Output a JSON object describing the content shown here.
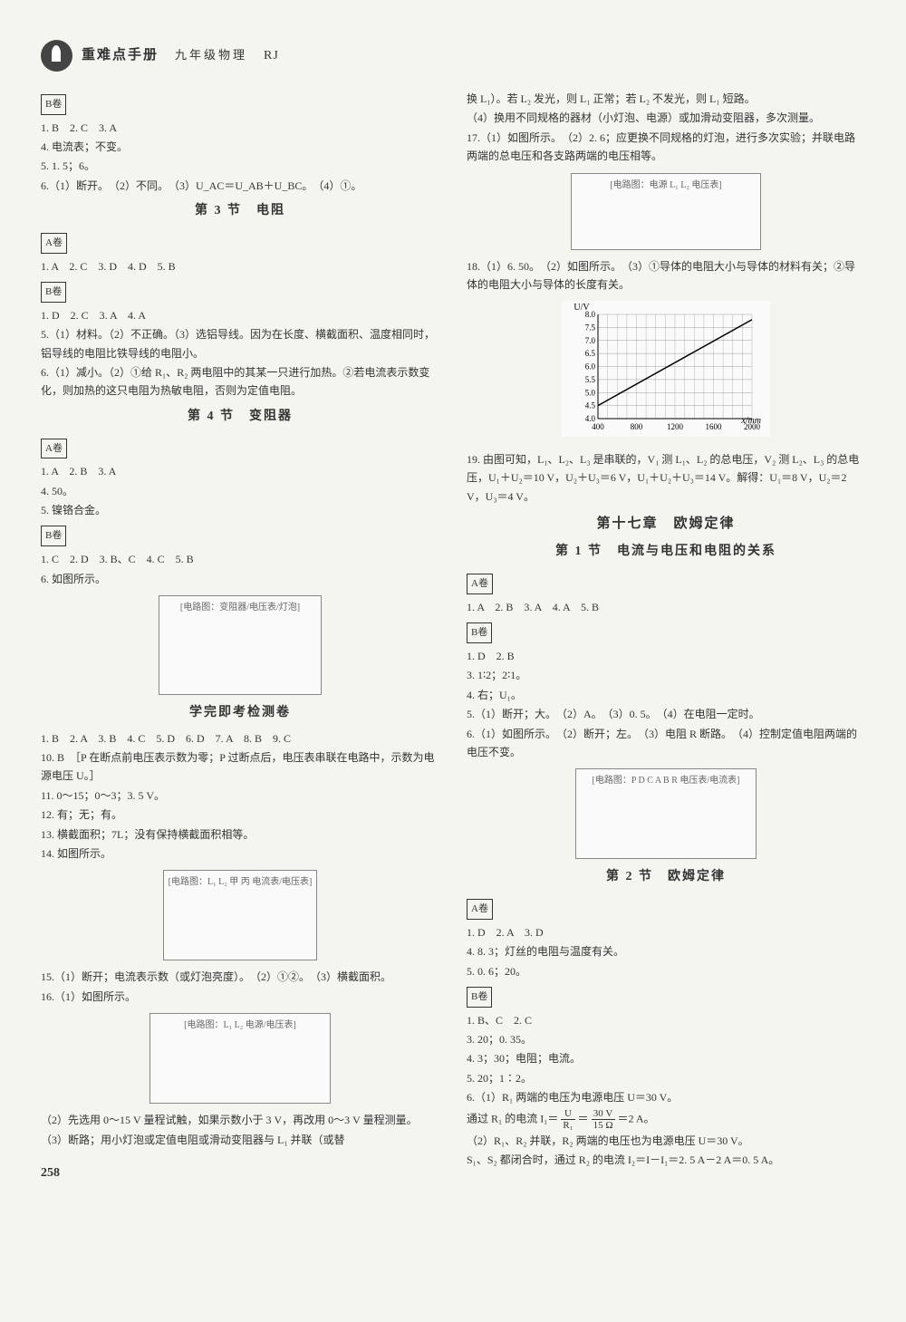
{
  "header": {
    "title": "重难点手册",
    "subtitle": "九年级物理",
    "edition": "RJ"
  },
  "page_number": "258",
  "left": {
    "badge_b": "B卷",
    "b1_1": "1. B　2. C　3. A",
    "b1_2": "4. 电流表；不变。",
    "b1_3": "5. 1. 5；6。",
    "b1_4": "6.（1）断开。　（2）不同。　（3）U_AC＝U_AB＋U_BC。　（4）①。",
    "sec3_title": "第 3 节　电阻",
    "badge_a": "A卷",
    "a3_1": "1. A　2. C　3. D　4. D　5. B",
    "b3_1": "1. D　2. C　3. A　4. A",
    "b3_2": "5.（1）材料。（2）不正确。（3）选铝导线。因为在长度、横截面积、温度相同时，铝导线的电阻比铁导线的电阻小。",
    "b3_3": "6.（1）减小。（2）①给 R₁、R₂ 两电阻中的其某一只进行加热。②若电流表示数变化，则加热的这只电阻为热敏电阻，否则为定值电阻。",
    "sec4_title": "第 4 节　变阻器",
    "a4_1": "1. A　2. B　3. A",
    "a4_2": "4. 50。",
    "a4_3": "5. 镍铬合金。",
    "b4_1": "1. C　2. D　3. B、C　4. C　5. B",
    "b4_2": "6. 如图所示。",
    "fig1_alt": "[电路图：变阻器/电压表/灯泡]",
    "test_title": "学完即考检测卷",
    "t1": "1. B　2. A　3. B　4. C　5. D　6. D　7. A　8. B　9. C",
    "t2": "10. B　［P 在断点前电压表示数为零；P 过断点后，电压表串联在电路中，示数为电源电压 U。］",
    "t3": "11. 0～15；0～3；3. 5 V。",
    "t4": "12. 有；无；有。",
    "t5": "13. 横截面积；7L；没有保持横截面积相等。",
    "t6": "14. 如图所示。",
    "fig2_alt": "[电路图：L₁ L₂ 甲 丙 电流表/电压表]",
    "t7": "15.（1）断开；电流表示数（或灯泡亮度）。　（2）①②。　（3）横截面积。",
    "t8": "16.（1）如图所示。",
    "fig3_alt": "[电路图：L₁ L₂ 电源/电压表]",
    "t9": "（2）先选用 0～15 V 量程试触，如果示数小于 3 V，再改用 0～3 V 量程测量。",
    "t10": "（3）断路；用小灯泡或定值电阻或滑动变阻器与 L₁ 并联（或替"
  },
  "right": {
    "r1": "换 L₁）。若 L₂ 发光，则 L₁ 正常；若 L₂ 不发光，则 L₁ 短路。",
    "r2": "（4）换用不同规格的器材（小灯泡、电源）或加滑动变阻器，多次测量。",
    "r3": "17.（1）如图所示。　（2）2. 6；应更换不同规格的灯泡，进行多次实验；并联电路两端的总电压和各支路两端的电压相等。",
    "fig4_alt": "[电路图：电源 L₁ L₂ 电压表]",
    "r4": "18.（1）6. 50。　（2）如图所示。　（3）①导体的电阻大小与导体的材料有关；②导体的电阻大小与导体的长度有关。",
    "chart": {
      "type": "line",
      "xlabel": "x/mm",
      "ylabel": "U/V",
      "xlim": [
        400,
        2000
      ],
      "xtick_step": 400,
      "ylim": [
        4.0,
        8.0
      ],
      "ytick_step": 0.5,
      "yticks": [
        "4.0",
        "4.5",
        "5.0",
        "5.5",
        "6.0",
        "6.5",
        "7.0",
        "7.5",
        "8.0"
      ],
      "xticks": [
        "400",
        "800",
        "1200",
        "1600",
        "2000"
      ],
      "grid_color": "#888888",
      "line_color": "#000000",
      "background_color": "#fafafa"
    },
    "r5": "19. 由图可知，L₁、L₂、L₃ 是串联的，V₁ 测 L₁、L₂ 的总电压，V₂ 测 L₂、L₃ 的总电压，U₁＋U₂＝10 V，U₂＋U₃＝6 V，U₁＋U₂＋U₃＝14 V。解得：U₁＝8 V，U₂＝2 V，U₃＝4 V。",
    "ch17_title": "第十七章　欧姆定律",
    "sec17_1_title": "第 1 节　电流与电压和电阻的关系",
    "badge_a": "A卷",
    "a17_1": "1. A　2. B　3. A　4. A　5. B",
    "badge_b": "B卷",
    "b17_1": "1. D　2. B",
    "b17_2": "3. 1∶2；2∶1。",
    "b17_3": "4. 右；U₁。",
    "b17_4": "5.（1）断开；大。　（2）A。　（3）0. 5。　（4）在电阻一定时。",
    "b17_5": "6.（1）如图所示。　（2）断开；左。　（3）电阻 R 断路。　（4）控制定值电阻两端的电压不变。",
    "fig5_alt": "[电路图：P D C A B R 电压表/电流表]",
    "sec17_2_title": "第 2 节　欧姆定律",
    "a17_2_1": "1. D　2. A　3. D",
    "a17_2_2": "4. 8. 3；灯丝的电阻与温度有关。",
    "a17_2_3": "5. 0. 6；20。",
    "b17_2_1": "1. B、C　2. C",
    "b17_2_2": "3. 20；0. 35。",
    "b17_2_3": "4. 3；30；电阻；电流。",
    "b17_2_4": "5. 20；1∶2。",
    "b17_2_5": "6.（1）R₁ 两端的电压为电源电压 U＝30 V。",
    "b17_2_6a": "通过 R₁ 的电流 I₁＝",
    "b17_2_6b": "＝2 A。",
    "frac_top1": "U",
    "frac_bot1": "R₁",
    "frac_top2": "30 V",
    "frac_bot2": "15 Ω",
    "b17_2_7": "（2）R₁、R₂ 并联，R₂ 两端的电压也为电源电压 U＝30 V。",
    "b17_2_8": "S₁、S₂ 都闭合时，通过 R₂ 的电流 I₂＝I－I₁＝2. 5 A－2 A＝0. 5 A。"
  }
}
